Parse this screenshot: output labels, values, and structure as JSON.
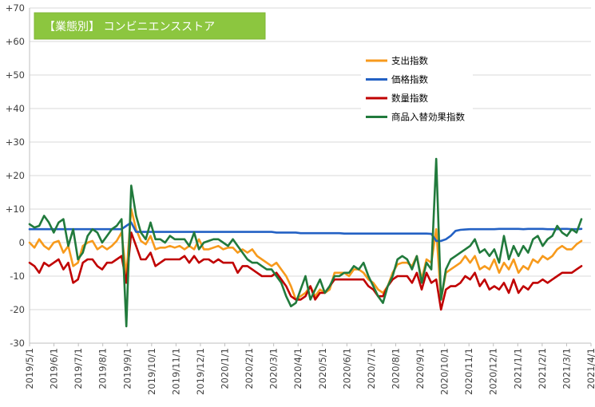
{
  "chart_data": {
    "type": "line",
    "title": "【業態別】 コンビニエンスストア",
    "title_bg_color": "#8CC63F",
    "ylim": [
      -30,
      70
    ],
    "y_ticks": [
      "+70",
      "+60",
      "+50",
      "+40",
      "+30",
      "+20",
      "+10",
      "0",
      "-10",
      "-20",
      "-30"
    ],
    "y_tick_values": [
      70,
      60,
      50,
      40,
      30,
      20,
      10,
      0,
      -10,
      -20,
      -30
    ],
    "x_tick_labels": [
      "2019/5/1",
      "2019/6/1",
      "2019/7/1",
      "2019/8/1",
      "2019/9/1",
      "2019/10/1",
      "2019/11/1",
      "2019/12/1",
      "2020/1/1",
      "2020/2/1",
      "2020/3/1",
      "2020/4/1",
      "2020/5/1",
      "2020/6/1",
      "2020/7/1",
      "2020/8/1",
      "2020/9/1",
      "2020/10/1",
      "2020/11/1",
      "2020/12/1",
      "2021/1/1",
      "2021/2/1",
      "2021/3/1",
      "2021/4/1"
    ],
    "grid": "horizontal",
    "legend_position": "upper-right",
    "series": [
      {
        "name": "支出指数",
        "color": "#F79A1C",
        "values": [
          0,
          -1.5,
          1,
          -1,
          -2,
          0,
          0.5,
          -3,
          -1,
          -7,
          -6,
          -1,
          0,
          0.5,
          -2,
          -1,
          -2,
          -1,
          0.5,
          3,
          -10,
          10,
          4,
          0.5,
          -0.5,
          2,
          -2,
          -1.5,
          -1.5,
          -1,
          -1.5,
          -1,
          -2,
          -1,
          -2,
          1,
          -2,
          -2,
          -1.5,
          -1,
          -2,
          -1.5,
          -1.5,
          -3,
          -2,
          -3,
          -2,
          -4,
          -5,
          -6,
          -7,
          -6,
          -8,
          -10,
          -13,
          -17,
          -16,
          -15,
          -13,
          -16,
          -14,
          -15,
          -14,
          -9,
          -9,
          -9,
          -10,
          -8,
          -8,
          -9,
          -11,
          -12,
          -14,
          -15,
          -13,
          -9,
          -6.5,
          -6,
          -6,
          -7,
          -4,
          -11,
          -5,
          -6,
          4,
          -17,
          -9,
          -8,
          -7,
          -6,
          -4,
          -6,
          -4,
          -8,
          -7,
          -8,
          -5,
          -9,
          -6,
          -8,
          -5,
          -9,
          -7,
          -8,
          -5,
          -6,
          -4,
          -5,
          -4,
          -2,
          -1,
          -2,
          -2,
          -0.5,
          0.5
        ]
      },
      {
        "name": "価格指数",
        "color": "#2361C4",
        "values": [
          4,
          4,
          4,
          4,
          4,
          4,
          4,
          4,
          4,
          4,
          4,
          4,
          4,
          4,
          4,
          4,
          4,
          4,
          4,
          4,
          5,
          6,
          3.2,
          3.2,
          3.2,
          3.2,
          3.2,
          3.2,
          3.2,
          3.2,
          3.2,
          3.2,
          3.2,
          3.2,
          3.2,
          3.2,
          3.2,
          3.2,
          3.2,
          3.2,
          3.2,
          3.2,
          3.2,
          3.2,
          3.2,
          3.2,
          3.2,
          3.2,
          3.2,
          3.2,
          3.2,
          3,
          3,
          3,
          3,
          3,
          2.8,
          2.8,
          2.8,
          2.8,
          2.8,
          2.8,
          2.8,
          2.8,
          2.8,
          2.7,
          2.7,
          2.7,
          2.7,
          2.7,
          2.7,
          2.7,
          2.7,
          2.7,
          2.7,
          2.7,
          2.7,
          2.7,
          2.7,
          2.7,
          2.7,
          2.7,
          2.7,
          2.6,
          0.5,
          0.5,
          1,
          2,
          3.5,
          3.8,
          3.9,
          4,
          4,
          4,
          4,
          4,
          4,
          4.1,
          4.1,
          4.1,
          4.1,
          4.1,
          4,
          4.1,
          4.1,
          4.1,
          4.1,
          4,
          4,
          4,
          4.1,
          4.1,
          4,
          4,
          4.1
        ]
      },
      {
        "name": "数量指数",
        "color": "#C00000",
        "values": [
          -6,
          -7,
          -9,
          -6,
          -7,
          -6,
          -5,
          -8,
          -6,
          -12,
          -11,
          -6,
          -5,
          -5,
          -7,
          -8,
          -6,
          -6,
          -5,
          -4,
          -12,
          3,
          -1,
          -5,
          -5,
          -3,
          -7,
          -6,
          -5,
          -5,
          -5,
          -5,
          -4,
          -6,
          -4,
          -6,
          -5,
          -5,
          -6,
          -5,
          -6,
          -6,
          -6,
          -9,
          -7,
          -7,
          -8,
          -9,
          -10,
          -10,
          -10,
          -9,
          -11,
          -13,
          -16,
          -17,
          -17,
          -16,
          -13,
          -17,
          -15,
          -15,
          -13,
          -11,
          -11,
          -11,
          -11,
          -11,
          -11,
          -11,
          -13,
          -14,
          -16,
          -16,
          -13,
          -11,
          -10,
          -10,
          -10,
          -12,
          -9,
          -14,
          -9,
          -12,
          -11,
          -20,
          -14,
          -13,
          -13,
          -12,
          -10,
          -11,
          -9,
          -13,
          -11,
          -14,
          -13,
          -14,
          -12,
          -15,
          -11,
          -15,
          -13,
          -14,
          -12,
          -12,
          -11,
          -12,
          -11,
          -10,
          -9,
          -9,
          -9,
          -8,
          -7
        ]
      },
      {
        "name": "商品入替効果指数",
        "color": "#217A3C",
        "values": [
          5.5,
          4.5,
          5,
          8,
          6,
          3,
          6,
          7,
          -1,
          4,
          -5,
          -3,
          2,
          4,
          3,
          0,
          2,
          4,
          5,
          7,
          -25,
          17,
          8,
          3,
          1,
          6,
          1,
          1,
          0,
          2,
          1,
          1,
          1,
          -1,
          3,
          -2,
          0,
          0.5,
          1,
          1,
          0,
          -1,
          1,
          -1,
          -3,
          -5,
          -6,
          -6,
          -7,
          -8,
          -8,
          -10,
          -12,
          -16,
          -19,
          -18,
          -14,
          -10,
          -17,
          -14,
          -11,
          -15,
          -13,
          -10,
          -10,
          -9,
          -9,
          -7,
          -8,
          -6,
          -10,
          -13,
          -16,
          -18,
          -13,
          -10,
          -5,
          -4,
          -5,
          -8,
          -4,
          -12,
          -6,
          -8,
          25,
          -17,
          -8,
          -5,
          -4,
          -3,
          -2,
          -1,
          1,
          -3,
          -2,
          -4,
          -2,
          -6,
          2,
          -5,
          -1,
          -4,
          -1,
          -3,
          1,
          2,
          -1,
          1,
          2,
          5,
          3,
          2,
          4,
          3,
          7
        ]
      }
    ]
  }
}
